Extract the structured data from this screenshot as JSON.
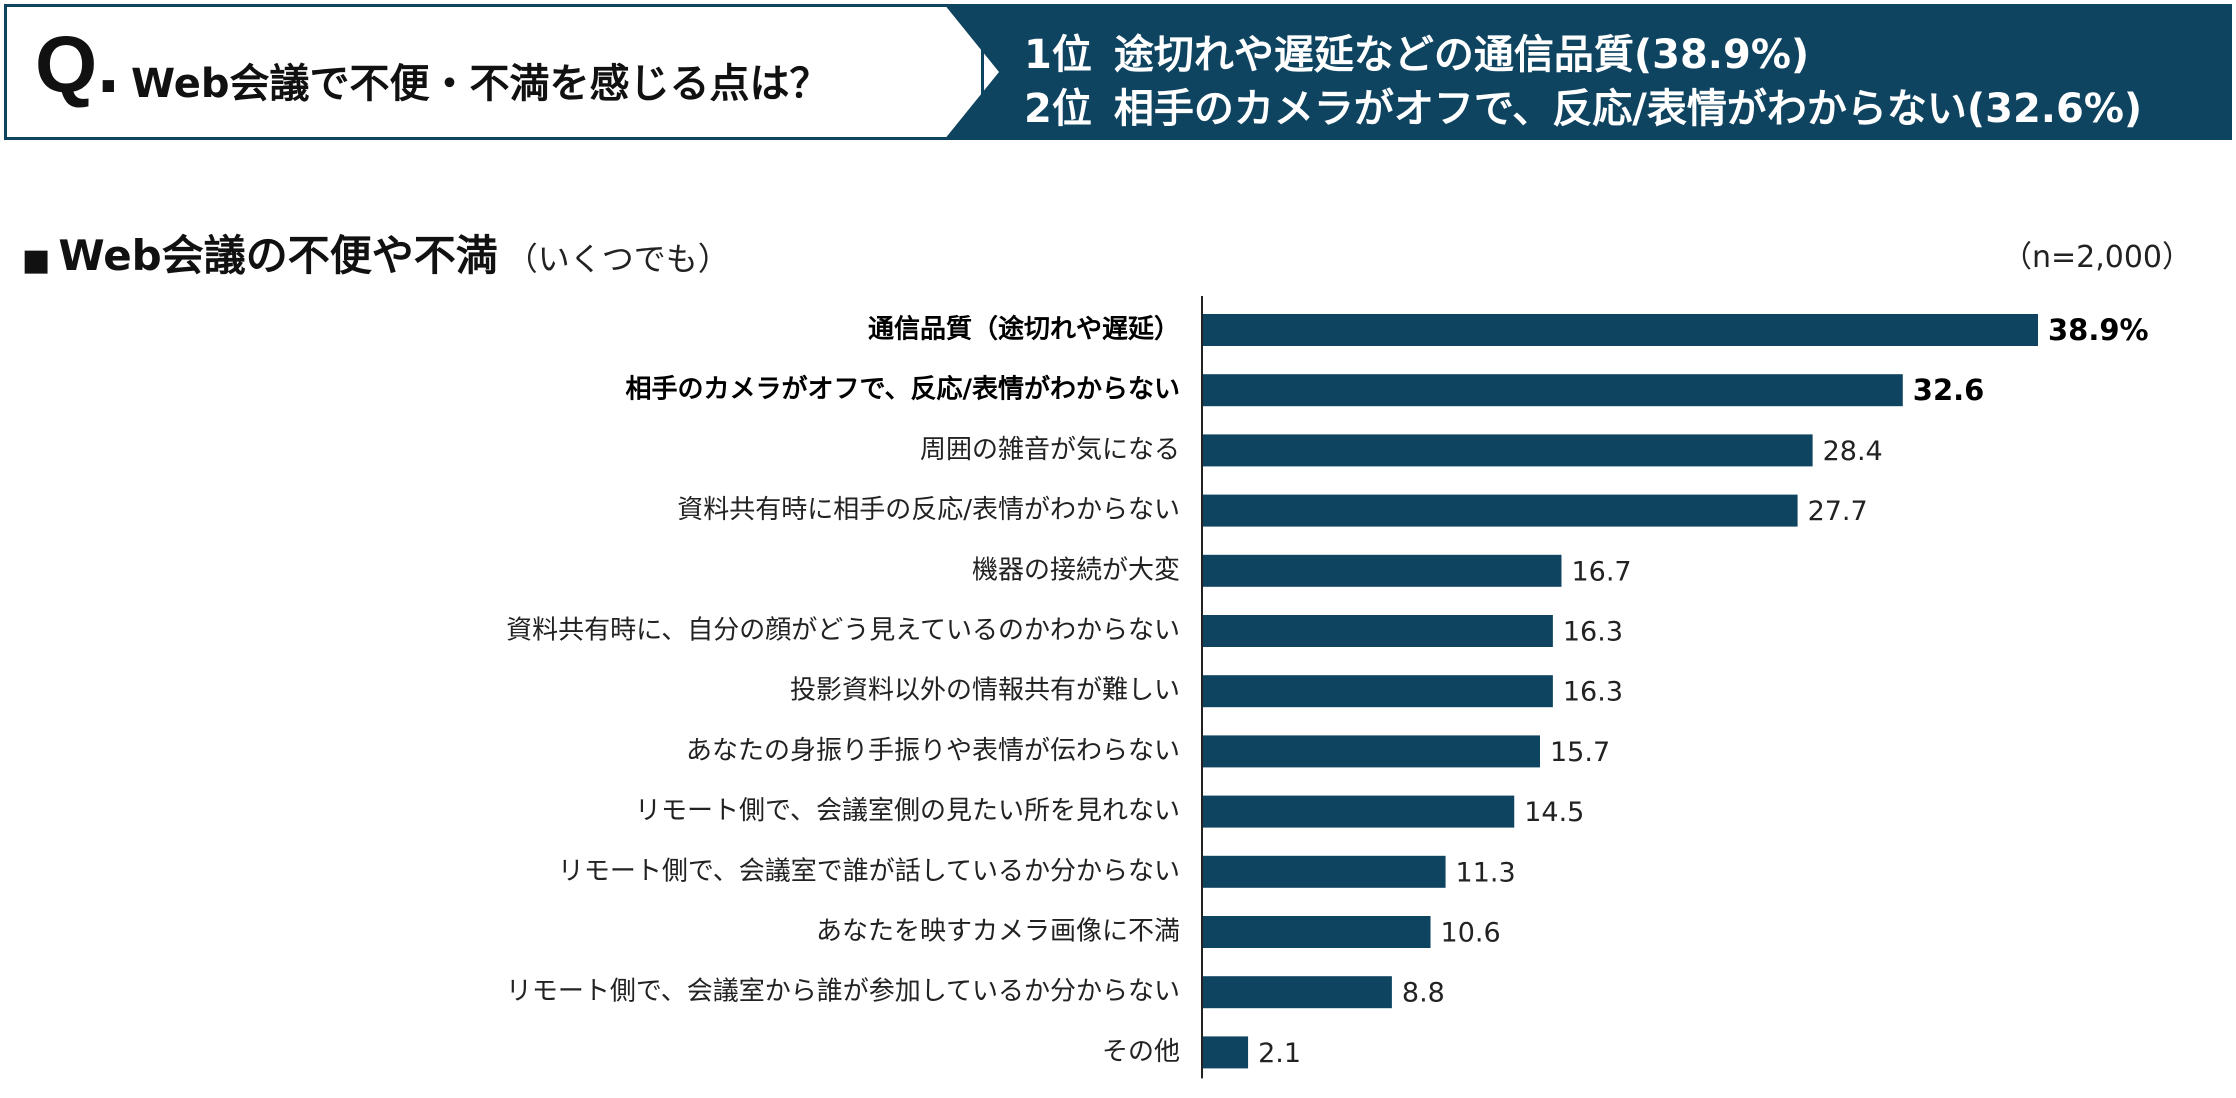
{
  "header": {
    "q_mark": "Q.",
    "question": "Web会議で不便・不満を感じる点は？",
    "rank1": {
      "rank": "1位",
      "text": "途切れや遅延などの通信品質(38.9%)"
    },
    "rank2": {
      "rank": "2位",
      "text": "相手のカメラがオフで、反応/表情がわからない(32.6%)"
    }
  },
  "section": {
    "bullet": "■",
    "title": "Web会議の不便や不満",
    "subtitle": "（いくつでも）",
    "sample_size": "（n=2,000）"
  },
  "colors": {
    "bar": "#0f4460",
    "banner": "#0f4460"
  },
  "chart_data": {
    "type": "bar",
    "orientation": "horizontal",
    "title": "Web会議の不便や不満",
    "unit": "%",
    "xlim": [
      0,
      40
    ],
    "categories": [
      "通信品質（途切れや遅延）",
      "相手のカメラがオフで、反応/表情がわからない",
      "周囲の雑音が気になる",
      "資料共有時に相手の反応/表情がわからない",
      "機器の接続が大変",
      "資料共有時に、自分の顔がどう見えているのかわからない",
      "投影資料以外の情報共有が難しい",
      "あなたの身振り手振りや表情が伝わらない",
      "リモート側で、会議室側の見たい所を見れない",
      "リモート側で、会議室で誰が話しているか分からない",
      "あなたを映すカメラ画像に不満",
      "リモート側で、会議室から誰が参加しているか分からない",
      "その他"
    ],
    "values": [
      38.9,
      32.6,
      28.4,
      27.7,
      16.7,
      16.3,
      16.3,
      15.7,
      14.5,
      11.3,
      10.6,
      8.8,
      2.1
    ],
    "value_labels": [
      "38.9%",
      "32.6",
      "28.4",
      "27.7",
      "16.7",
      "16.3",
      "16.3",
      "15.7",
      "14.5",
      "11.3",
      "10.6",
      "8.8",
      "2.1"
    ],
    "highlighted": [
      0,
      1
    ]
  }
}
